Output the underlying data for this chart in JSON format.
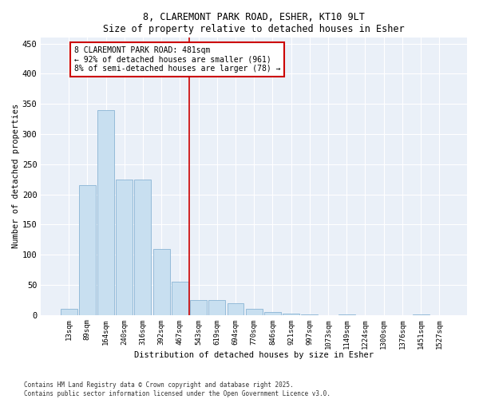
{
  "title1": "8, CLAREMONT PARK ROAD, ESHER, KT10 9LT",
  "title2": "Size of property relative to detached houses in Esher",
  "xlabel": "Distribution of detached houses by size in Esher",
  "ylabel": "Number of detached properties",
  "bar_labels": [
    "13sqm",
    "89sqm",
    "164sqm",
    "240sqm",
    "316sqm",
    "392sqm",
    "467sqm",
    "543sqm",
    "619sqm",
    "694sqm",
    "770sqm",
    "846sqm",
    "921sqm",
    "997sqm",
    "1073sqm",
    "1149sqm",
    "1224sqm",
    "1300sqm",
    "1376sqm",
    "1451sqm",
    "1527sqm"
  ],
  "bar_values": [
    10,
    215,
    340,
    225,
    225,
    110,
    55,
    25,
    25,
    20,
    10,
    5,
    2,
    1,
    0,
    1,
    0,
    0,
    0,
    1,
    0
  ],
  "bar_color": "#c8dff0",
  "bar_edgecolor": "#8ab4d4",
  "red_line_x": 6.5,
  "annotation_text": "8 CLAREMONT PARK ROAD: 481sqm\n← 92% of detached houses are smaller (961)\n8% of semi-detached houses are larger (78) →",
  "annotation_box_facecolor": "#ffffff",
  "annotation_box_edgecolor": "#cc0000",
  "ylim": [
    0,
    460
  ],
  "yticks": [
    0,
    50,
    100,
    150,
    200,
    250,
    300,
    350,
    400,
    450
  ],
  "footer_line1": "Contains HM Land Registry data © Crown copyright and database right 2025.",
  "footer_line2": "Contains public sector information licensed under the Open Government Licence v3.0.",
  "bg_color": "#ffffff",
  "plot_bg_color": "#eaf0f8"
}
